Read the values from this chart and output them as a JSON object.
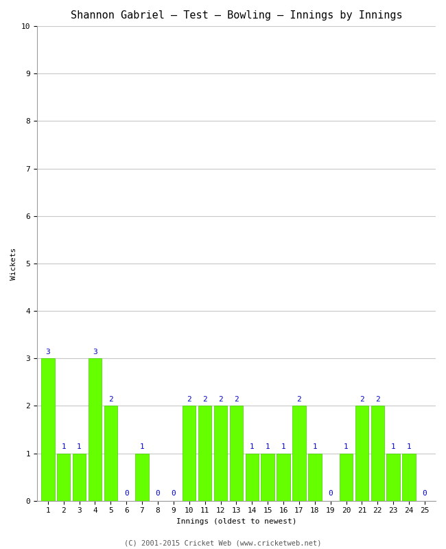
{
  "title": "Shannon Gabriel – Test – Bowling – Innings by Innings",
  "xlabel": "Innings (oldest to newest)",
  "ylabel": "Wickets",
  "innings": [
    1,
    2,
    3,
    4,
    5,
    6,
    7,
    8,
    9,
    10,
    11,
    12,
    13,
    14,
    15,
    16,
    17,
    18,
    19,
    20,
    21,
    22,
    23,
    24,
    25
  ],
  "wickets": [
    3,
    1,
    1,
    3,
    2,
    0,
    1,
    0,
    0,
    2,
    2,
    2,
    2,
    1,
    1,
    1,
    2,
    1,
    0,
    1,
    2,
    2,
    1,
    1,
    0
  ],
  "bar_color": "#66ff00",
  "bar_edge_color": "#44cc00",
  "label_color": "#0000cc",
  "background_color": "#ffffff",
  "grid_color": "#c8c8c8",
  "ylim": [
    0,
    10
  ],
  "yticks": [
    0,
    1,
    2,
    3,
    4,
    5,
    6,
    7,
    8,
    9,
    10
  ],
  "title_fontsize": 11,
  "axis_label_fontsize": 8,
  "tick_fontsize": 8,
  "annotation_fontsize": 8,
  "footer_text": "(C) 2001-2015 Cricket Web (www.cricketweb.net)",
  "footer_fontsize": 7.5,
  "footer_color": "#555555"
}
